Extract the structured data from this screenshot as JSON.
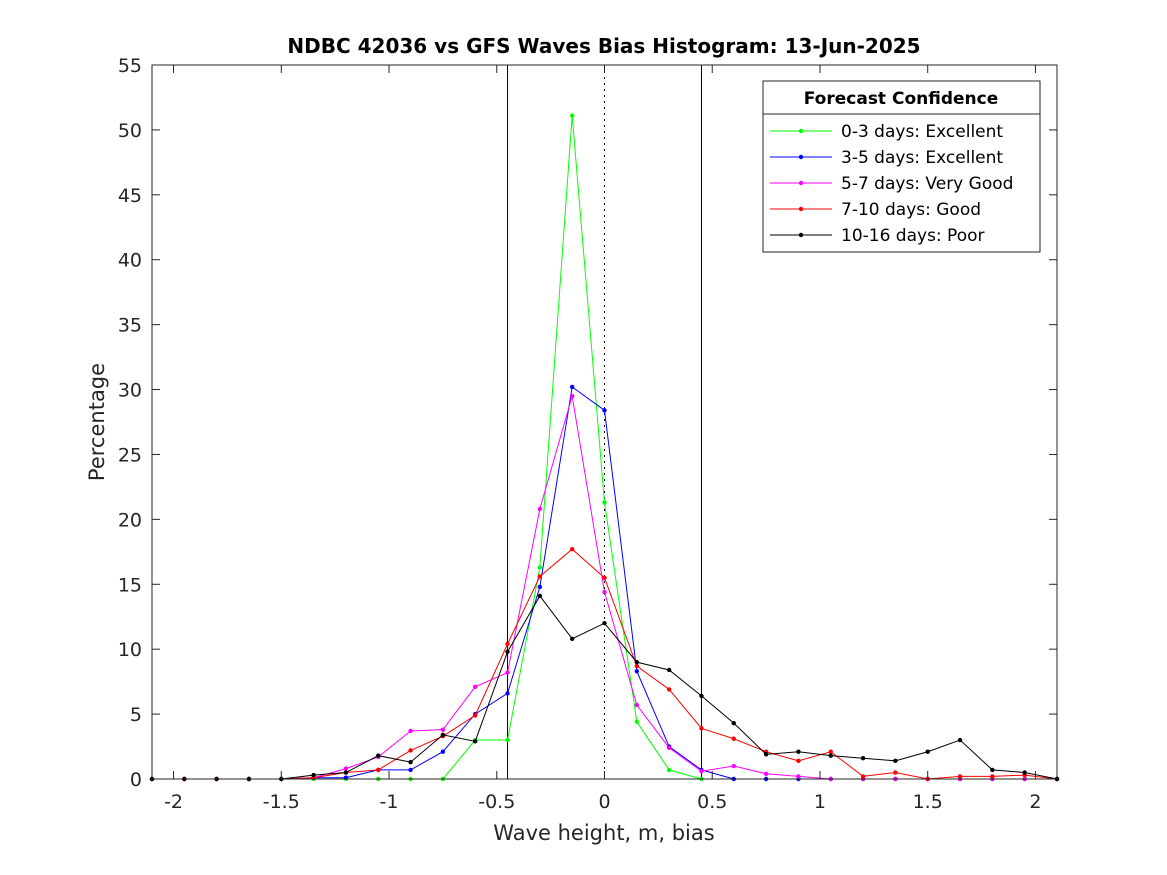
{
  "chart_data": {
    "type": "line",
    "title": "NDBC 42036 vs GFS Waves Bias Histogram: 13-Jun-2025",
    "xlabel": "Wave height, m, bias",
    "ylabel": "Percentage",
    "xlim": [
      -2.1,
      2.1
    ],
    "ylim": [
      0,
      55
    ],
    "xticks": [
      -2,
      -1.5,
      -1,
      -0.5,
      0,
      0.5,
      1,
      1.5,
      2
    ],
    "xtick_labels": [
      "-2",
      "-1.5",
      "-1",
      "-0.5",
      "0",
      "0.5",
      "1",
      "1.5",
      "2"
    ],
    "yticks": [
      0,
      5,
      10,
      15,
      20,
      25,
      30,
      35,
      40,
      45,
      50,
      55
    ],
    "ytick_labels": [
      "0",
      "5",
      "10",
      "15",
      "20",
      "25",
      "30",
      "35",
      "40",
      "45",
      "50",
      "55"
    ],
    "grid": false,
    "legend_title": "Forecast Confidence",
    "legend_position": "top-right",
    "reference_lines": [
      {
        "x": -0.45,
        "style": "solid"
      },
      {
        "x": 0,
        "style": "dotted"
      },
      {
        "x": 0.45,
        "style": "solid"
      }
    ],
    "x": [
      -2.1,
      -1.95,
      -1.8,
      -1.65,
      -1.5,
      -1.35,
      -1.2,
      -1.05,
      -0.9,
      -0.75,
      -0.6,
      -0.45,
      -0.3,
      -0.15,
      0,
      0.15,
      0.3,
      0.45,
      0.6,
      0.75,
      0.9,
      1.05,
      1.2,
      1.35,
      1.5,
      1.65,
      1.8,
      1.95,
      2.1
    ],
    "series": [
      {
        "name": "0-3 days: Excellent",
        "color": "#00ff00",
        "values": [
          0,
          0,
          0,
          0,
          0,
          0,
          0,
          0,
          0,
          0,
          3.0,
          3.0,
          16.3,
          51.1,
          21.3,
          4.4,
          0.7,
          0,
          0,
          0,
          0,
          0,
          0,
          0,
          0,
          0,
          0,
          0,
          0
        ]
      },
      {
        "name": "3-5 days: Excellent",
        "color": "#0000ff",
        "values": [
          0,
          0,
          0,
          0,
          0,
          0.1,
          0.1,
          0.7,
          0.7,
          2.1,
          5.0,
          6.6,
          14.8,
          30.2,
          28.4,
          8.3,
          2.5,
          0.7,
          0,
          0,
          0,
          0,
          0,
          0,
          0,
          0,
          0,
          0,
          0
        ]
      },
      {
        "name": "5-7 days: Very Good",
        "color": "#ff00ff",
        "values": [
          0,
          0,
          0,
          0,
          0,
          0.1,
          0.8,
          1.7,
          3.7,
          3.8,
          7.1,
          8.2,
          20.8,
          29.5,
          14.4,
          5.7,
          2.4,
          0.6,
          1.0,
          0.4,
          0.2,
          0,
          0,
          0,
          0,
          0,
          0,
          0,
          0
        ]
      },
      {
        "name": "7-10 days: Good",
        "color": "#ff0000",
        "values": [
          0,
          0,
          0,
          0,
          0,
          0.1,
          0.5,
          0.7,
          2.2,
          3.3,
          4.9,
          10.4,
          15.6,
          17.7,
          15.5,
          8.7,
          6.9,
          3.9,
          3.1,
          2.1,
          1.4,
          2.1,
          0.2,
          0.5,
          0,
          0.2,
          0.2,
          0.3,
          0
        ]
      },
      {
        "name": "10-16 days: Poor",
        "color": "#000000",
        "values": [
          0,
          0,
          0,
          0,
          0,
          0.3,
          0.5,
          1.8,
          1.3,
          3.4,
          2.9,
          9.8,
          14.1,
          10.8,
          12.0,
          9.0,
          8.4,
          6.4,
          4.3,
          1.9,
          2.1,
          1.8,
          1.6,
          1.4,
          2.1,
          3.0,
          0.7,
          0.5,
          0
        ]
      }
    ]
  }
}
